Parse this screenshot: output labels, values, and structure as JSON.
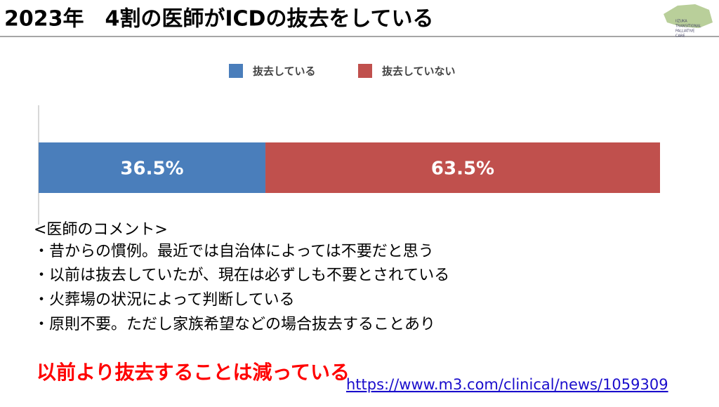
{
  "slide": {
    "title": "2023年　4割の医師がICDの抜去をしている",
    "logo": [
      "IIZUKA",
      "TRANSITIONAL",
      "PALLIATIVE",
      "CARE"
    ],
    "comments_heading": "<医師のコメント>",
    "comments": [
      "・昔からの慣例。最近では自治体によっては不要だと思う",
      "・以前は抜去していたが、現在は必ずしも不要とされている",
      "・火葬場の状況によって判断している",
      "・原則不要。ただし家族希望などの場合抜去することあり"
    ],
    "conclusion": "以前より抜去することは減っている",
    "link": "https://www.m3.com/clinical/news/1059309"
  },
  "chart_data": {
    "type": "stacked-bar-horizontal",
    "categories": [
      null
    ],
    "series": [
      {
        "name": "抜去している",
        "color": "#4a7ebb",
        "values": [
          36.5
        ],
        "value_labels": [
          "36.5%"
        ]
      },
      {
        "name": "抜去していない",
        "color": "#c0504d",
        "values": [
          63.5
        ],
        "value_labels": [
          "63.5%"
        ]
      }
    ],
    "legend": "top"
  }
}
